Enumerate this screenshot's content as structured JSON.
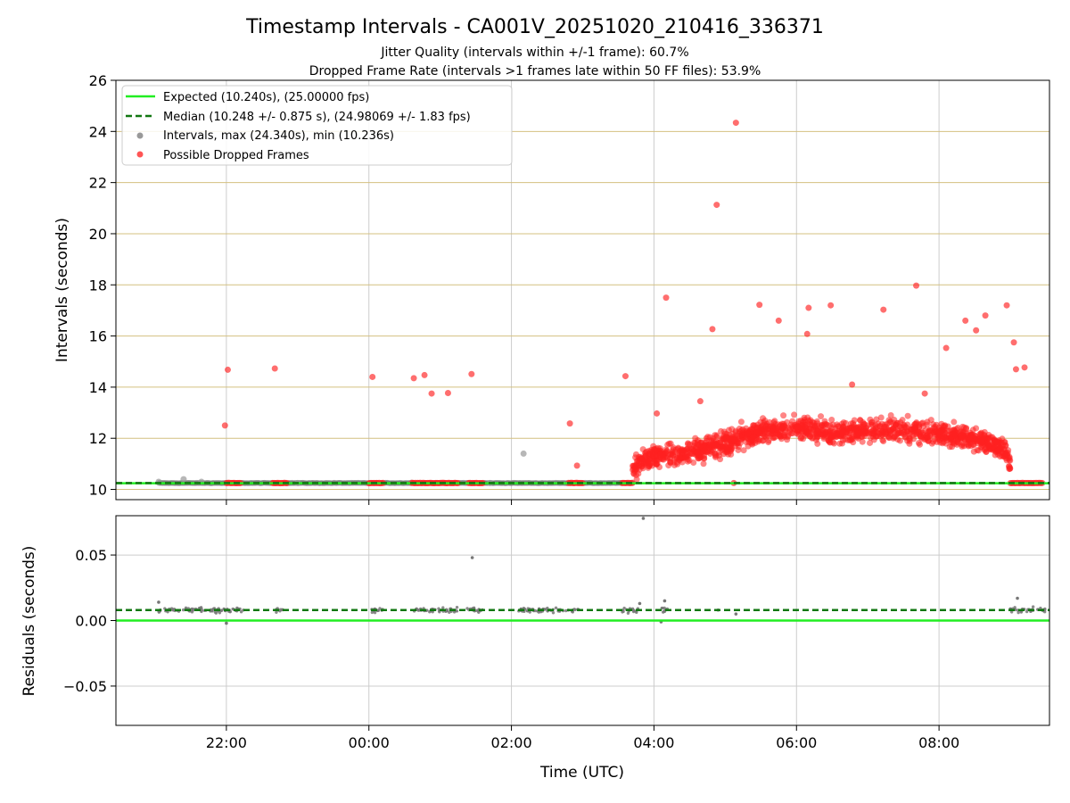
{
  "chart_data": {
    "type": "scatter",
    "title": "Timestamp Intervals - CA001V_20251020_210416_336371",
    "subtitles": [
      "Jitter Quality (intervals within +/-1 frame): 60.7%",
      "Dropped Frame Rate (intervals >1 frames late within 50 FF files): 53.9%"
    ],
    "xlabel": "Time (UTC)",
    "x_unit": "hours since 00:00 UTC on first day",
    "x_range": [
      -3.55,
      9.55
    ],
    "x_ticks": [
      {
        "value": -2,
        "label": "22:00"
      },
      {
        "value": 0,
        "label": "00:00"
      },
      {
        "value": 2,
        "label": "02:00"
      },
      {
        "value": 4,
        "label": "04:00"
      },
      {
        "value": 6,
        "label": "06:00"
      },
      {
        "value": 8,
        "label": "08:00"
      }
    ],
    "colors": {
      "expected": "#22ee22",
      "median": "#117711",
      "intervals": "#777777",
      "dropped": "#ff2020",
      "gridline": "#cccccc",
      "hline": "#d4c080"
    },
    "top_panel": {
      "ylabel": "Intervals (seconds)",
      "ylim": [
        9.6,
        26
      ],
      "y_ticks": [
        10,
        12,
        14,
        16,
        18,
        20,
        22,
        24,
        26
      ],
      "expected_value": 10.24,
      "median_value": 10.248,
      "legend": [
        {
          "label": "Expected (10.240s), (25.00000 fps)",
          "style": "solid-line",
          "color_key": "expected"
        },
        {
          "label": "Median (10.248 +/- 0.875 s), (24.98069 +/- 1.83 fps)",
          "style": "dashed-line",
          "color_key": "median"
        },
        {
          "label": "Intervals, max (24.340s), min (10.236s)",
          "style": "dot",
          "color_key": "intervals"
        },
        {
          "label": "Possible Dropped Frames",
          "style": "dot",
          "color_key": "dropped"
        }
      ],
      "gray_points": [
        [
          -2.95,
          10.3
        ],
        [
          -2.6,
          10.4
        ],
        [
          -2.35,
          10.3
        ],
        [
          2.17,
          11.4
        ],
        [
          1.7,
          10.25
        ],
        [
          -1.0,
          10.25
        ],
        [
          0.6,
          10.26
        ]
      ],
      "red_outliers": [
        [
          -2.02,
          12.5
        ],
        [
          -1.98,
          14.68
        ],
        [
          -1.32,
          14.73
        ],
        [
          0.05,
          14.4
        ],
        [
          0.63,
          14.35
        ],
        [
          0.78,
          14.47
        ],
        [
          0.88,
          13.75
        ],
        [
          1.11,
          13.77
        ],
        [
          1.44,
          14.51
        ],
        [
          2.82,
          12.58
        ],
        [
          2.92,
          10.93
        ],
        [
          3.6,
          14.43
        ],
        [
          4.04,
          12.97
        ],
        [
          4.17,
          17.5
        ],
        [
          4.65,
          13.45
        ],
        [
          4.82,
          16.27
        ],
        [
          4.88,
          21.13
        ],
        [
          5.15,
          24.34
        ],
        [
          5.48,
          17.22
        ],
        [
          5.75,
          16.6
        ],
        [
          6.15,
          16.08
        ],
        [
          6.17,
          17.1
        ],
        [
          6.48,
          17.2
        ],
        [
          6.78,
          14.1
        ],
        [
          7.22,
          17.03
        ],
        [
          7.68,
          17.97
        ],
        [
          8.1,
          15.53
        ],
        [
          8.37,
          16.6
        ],
        [
          8.52,
          16.22
        ],
        [
          8.65,
          16.8
        ],
        [
          8.95,
          17.2
        ],
        [
          9.05,
          15.75
        ],
        [
          9.08,
          14.7
        ],
        [
          9.2,
          14.77
        ],
        [
          7.8,
          13.75
        ],
        [
          5.12,
          10.25
        ]
      ],
      "red_baseline_clusters": [
        [
          -2.0,
          -1.8
        ],
        [
          -1.35,
          -1.15
        ],
        [
          0.0,
          0.2
        ],
        [
          0.6,
          1.25
        ],
        [
          1.4,
          1.6
        ],
        [
          2.8,
          3.0
        ],
        [
          3.55,
          3.7
        ],
        [
          9.0,
          9.45
        ]
      ],
      "red_band_profile": [
        [
          3.7,
          10.8
        ],
        [
          4.0,
          11.3
        ],
        [
          4.5,
          11.4
        ],
        [
          5.0,
          11.8
        ],
        [
          5.5,
          12.3
        ],
        [
          6.0,
          12.4
        ],
        [
          6.5,
          12.2
        ],
        [
          7.0,
          12.3
        ],
        [
          7.5,
          12.3
        ],
        [
          8.0,
          12.2
        ],
        [
          8.5,
          12.0
        ],
        [
          8.9,
          11.6
        ],
        [
          9.0,
          11.0
        ]
      ]
    },
    "bottom_panel": {
      "ylabel": "Residuals (seconds)",
      "ylim": [
        -0.08,
        0.08
      ],
      "y_ticks": [
        {
          "value": 0.05,
          "label": "0.05"
        },
        {
          "value": 0.0,
          "label": "0.00"
        },
        {
          "value": -0.05,
          "label": "−0.05"
        }
      ],
      "expected_residual": 0.0,
      "median_residual": 0.008,
      "residual_outliers": [
        [
          3.85,
          0.078
        ],
        [
          1.45,
          0.048
        ],
        [
          4.15,
          0.015
        ],
        [
          4.1,
          -0.001
        ],
        [
          3.8,
          0.013
        ],
        [
          9.1,
          0.017
        ],
        [
          -2.0,
          -0.002
        ],
        [
          -2.95,
          0.014
        ],
        [
          5.15,
          0.005
        ],
        [
          4.9,
          0.008
        ]
      ],
      "residual_clusters": [
        [
          -2.95,
          -1.75
        ],
        [
          -1.3,
          -1.2
        ],
        [
          0.0,
          0.2
        ],
        [
          0.6,
          1.25
        ],
        [
          1.35,
          1.6
        ],
        [
          2.1,
          2.95
        ],
        [
          3.55,
          3.8
        ],
        [
          4.1,
          4.2
        ],
        [
          9.0,
          9.5
        ]
      ]
    }
  }
}
